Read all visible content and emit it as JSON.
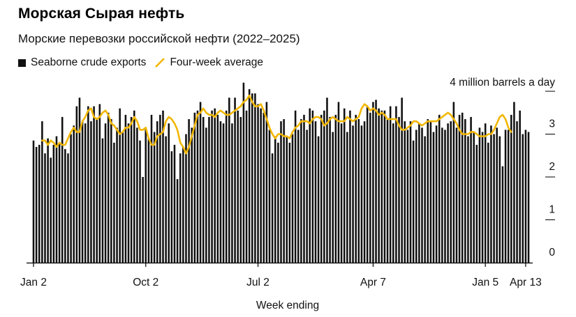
{
  "header": {
    "title": "Морская Сырая нефть",
    "subtitle": "Морские перевозки российской нефти (2022–2025)"
  },
  "legend": {
    "bars_label": "Seaborne crude exports",
    "line_label": "Four-week average"
  },
  "colors": {
    "bars": "#111111",
    "line": "#f2b705",
    "axis": "#000000"
  },
  "chart_data": {
    "type": "bar",
    "unit_label": "4 million barrels a day",
    "ylim": [
      0,
      4
    ],
    "y_ticks": [
      {
        "value": 0,
        "label": "0"
      },
      {
        "value": 1,
        "label": "1"
      },
      {
        "value": 2,
        "label": "2"
      },
      {
        "value": 3,
        "label": "3"
      }
    ],
    "xlabel": "Week ending",
    "x_ticks": [
      {
        "index": 0,
        "label": "Jan 2"
      },
      {
        "index": 39,
        "label": "Oct 2"
      },
      {
        "index": 78,
        "label": "Jul 2"
      },
      {
        "index": 118,
        "label": "Apr 7"
      },
      {
        "index": 157,
        "label": "Jan 5"
      },
      {
        "index": 171,
        "label": "Apr 13"
      }
    ],
    "grid": false,
    "legend_position": "top-left",
    "series": [
      {
        "name": "Seaborne crude exports",
        "type": "bar",
        "values": [
          2.85,
          2.7,
          2.75,
          3.3,
          2.55,
          2.9,
          2.45,
          2.75,
          2.95,
          2.8,
          3.4,
          2.65,
          2.55,
          3.0,
          3.2,
          3.65,
          3.85,
          3.3,
          3.25,
          3.65,
          3.3,
          3.65,
          3.35,
          3.7,
          2.9,
          3.25,
          3.5,
          3.35,
          2.8,
          3.15,
          3.6,
          3.05,
          3.45,
          3.25,
          3.4,
          3.55,
          3.15,
          2.85,
          2.0,
          3.15,
          2.9,
          3.45,
          3.05,
          3.3,
          3.45,
          3.55,
          2.95,
          3.25,
          2.6,
          2.75,
          1.95,
          2.55,
          2.7,
          3.0,
          3.35,
          3.15,
          3.5,
          3.55,
          3.75,
          3.4,
          3.15,
          3.4,
          3.55,
          3.6,
          3.45,
          3.3,
          3.25,
          3.55,
          3.85,
          3.25,
          3.85,
          3.55,
          3.4,
          4.2,
          3.55,
          4.05,
          3.95,
          3.95,
          3.7,
          3.6,
          3.5,
          3.75,
          3.1,
          2.55,
          2.95,
          2.8,
          3.3,
          3.35,
          2.95,
          2.8,
          3.0,
          3.55,
          3.1,
          3.35,
          3.45,
          3.1,
          3.6,
          3.55,
          3.3,
          2.95,
          3.45,
          3.55,
          3.85,
          3.4,
          3.05,
          3.45,
          3.75,
          3.25,
          3.6,
          3.05,
          3.55,
          3.2,
          3.45,
          3.35,
          3.2,
          3.3,
          3.65,
          3.5,
          3.75,
          3.8,
          3.6,
          3.55,
          3.55,
          3.35,
          3.65,
          3.25,
          3.65,
          3.4,
          3.85,
          3.3,
          3.1,
          3.3,
          2.85,
          3.1,
          3.25,
          3.15,
          2.95,
          3.35,
          3.3,
          3.05,
          3.2,
          3.45,
          3.15,
          3.1,
          3.25,
          3.3,
          3.75,
          3.15,
          3.45,
          3.5,
          3.35,
          2.95,
          3.4,
          3.05,
          2.75,
          3.15,
          3.05,
          3.25,
          2.8,
          3.2,
          3.0,
          3.15,
          2.95,
          2.25,
          3.1,
          3.1,
          3.45,
          3.75,
          3.3,
          3.55,
          3.0,
          3.1,
          3.05
        ]
      },
      {
        "name": "Four-week average",
        "type": "line",
        "start_index": 3,
        "values": [
          2.85,
          2.85,
          2.75,
          2.85,
          2.8,
          2.7,
          2.8,
          2.75,
          2.75,
          2.9,
          3.05,
          3.15,
          3.05,
          3.05,
          3.3,
          3.4,
          3.55,
          3.6,
          3.4,
          3.35,
          3.4,
          3.5,
          3.55,
          3.45,
          3.25,
          3.2,
          3.1,
          3.0,
          3.05,
          3.15,
          3.15,
          3.25,
          3.4,
          3.3,
          3.1,
          3.1,
          3.15,
          2.9,
          2.75,
          2.75,
          2.95,
          3.0,
          3.05,
          3.3,
          3.4,
          3.35,
          3.25,
          3.1,
          2.8,
          2.7,
          2.55,
          2.7,
          2.95,
          3.2,
          3.45,
          3.5,
          3.6,
          3.5,
          3.45,
          3.45,
          3.4,
          3.5,
          3.55,
          3.5,
          3.45,
          3.45,
          3.5,
          3.55,
          3.6,
          3.65,
          3.75,
          3.8,
          3.9,
          3.75,
          3.65,
          3.65,
          3.7,
          3.55,
          3.35,
          3.15,
          3.0,
          2.9,
          3.0,
          3.0,
          2.95,
          2.95,
          2.9,
          3.05,
          3.15,
          3.2,
          3.3,
          3.3,
          3.3,
          3.25,
          3.35,
          3.4,
          3.4,
          3.35,
          3.2,
          3.25,
          3.35,
          3.4,
          3.35,
          3.3,
          3.3,
          3.3,
          3.4,
          3.35,
          3.3,
          3.35,
          3.4,
          3.6,
          3.7,
          3.65,
          3.55,
          3.6,
          3.55,
          3.45,
          3.5,
          3.45,
          3.35,
          3.35,
          3.35,
          3.35,
          3.2,
          3.1,
          3.1,
          3.15,
          3.2,
          3.3,
          3.3,
          3.25,
          3.2,
          3.25,
          3.3,
          3.3,
          3.3,
          3.3,
          3.35,
          3.4,
          3.45,
          3.5,
          3.45,
          3.35,
          3.25,
          3.1,
          3.0,
          3.0,
          3.0,
          3.05,
          3.05,
          3.0,
          2.95,
          2.95,
          2.95,
          3.0,
          3.0,
          3.1,
          3.25,
          3.4,
          3.45,
          3.35,
          3.15,
          3.05
        ]
      }
    ]
  }
}
